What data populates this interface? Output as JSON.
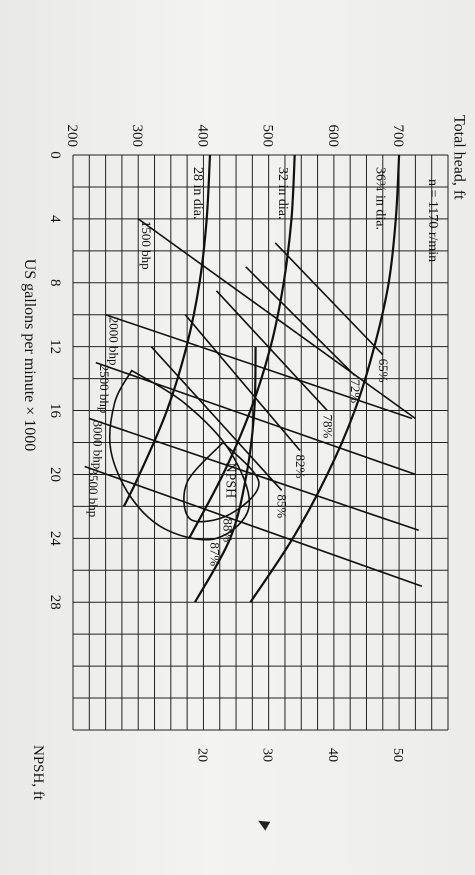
{
  "chart_data": {
    "type": "line",
    "title": "",
    "speed_label": "n = 1170 r/min",
    "xlabel": "US gallons per minute × 1000",
    "ylabel": "Total head, ft",
    "y2label": "NPSH, ft",
    "x_ticks": [
      "0",
      "4",
      "8",
      "12",
      "16",
      "20",
      "24",
      "28"
    ],
    "y_ticks": [
      "200",
      "300",
      "400",
      "500",
      "600",
      "700"
    ],
    "y2_ticks": [
      "20",
      "30",
      "40",
      "50"
    ],
    "xlim": [
      0,
      36
    ],
    "ylim": [
      200,
      775
    ],
    "y2lim": [
      0,
      57.5
    ],
    "grid": true,
    "head_curves": [
      {
        "name": "36¾ in dia.",
        "x": [
          0,
          4,
          8,
          12,
          16,
          20,
          24,
          28
        ],
        "y": [
          700,
          695,
          684,
          662,
          632,
          590,
          537,
          472
        ]
      },
      {
        "name": "32 in dia.",
        "x": [
          0,
          4,
          8,
          12,
          16,
          20,
          24
        ],
        "y": [
          540,
          535,
          523,
          503,
          472,
          430,
          378
        ]
      },
      {
        "name": "28 in dia.",
        "x": [
          0,
          4,
          8,
          12,
          16,
          20,
          22
        ],
        "y": [
          410,
          405,
          394,
          374,
          344,
          302,
          278
        ]
      }
    ],
    "efficiency_lines": [
      {
        "name": "65%",
        "x": [
          5.5,
          12.5
        ],
        "y": [
          510,
          675
        ]
      },
      {
        "name": "72%",
        "x": [
          7.0,
          13.8
        ],
        "y": [
          465,
          632
        ]
      },
      {
        "name": "78%",
        "x": [
          8.5,
          16.0
        ],
        "y": [
          420,
          590
        ]
      },
      {
        "name": "82%",
        "x": [
          10.0,
          18.5
        ],
        "y": [
          372,
          548
        ]
      },
      {
        "name": "85%",
        "x": [
          12.0,
          21.0
        ],
        "y": [
          320,
          520
        ]
      }
    ],
    "efficiency_islands": [
      {
        "name": "87%",
        "x": [
          13.5,
          15.5,
          18.5,
          21.5,
          23.5,
          24.0,
          22.0,
          18.5,
          15.5,
          13.5
        ],
        "y": [
          290,
          264,
          258,
          290,
          345,
          420,
          470,
          440,
          370,
          290
        ]
      },
      {
        "name": "88%",
        "x": [
          18.0,
          20.5,
          22.8,
          22.5,
          20.5,
          18.0
        ],
        "y": [
          430,
          375,
          380,
          440,
          485,
          430
        ]
      }
    ],
    "power_lines": [
      {
        "name": "1500 bhp",
        "x": [
          4.0,
          16.5
        ],
        "y": [
          300,
          725
        ]
      },
      {
        "name": "2000 bhp",
        "x": [
          10.0,
          16.5
        ],
        "y": [
          250,
          720
        ]
      },
      {
        "name": "2500 bhp",
        "x": [
          13.0,
          20.0
        ],
        "y": [
          235,
          725
        ]
      },
      {
        "name": "3000 bhp",
        "x": [
          16.5,
          23.5
        ],
        "y": [
          225,
          730
        ]
      },
      {
        "name": "3500 bhp",
        "x": [
          19.5,
          27.0
        ],
        "y": [
          218,
          735
        ]
      }
    ],
    "npsh_curve": {
      "name": "NPSH",
      "x": [
        12.0,
        16.0,
        20.0,
        24.0,
        28.0
      ],
      "y": [
        28.0,
        27.8,
        26.6,
        24.1,
        18.7
      ]
    }
  }
}
